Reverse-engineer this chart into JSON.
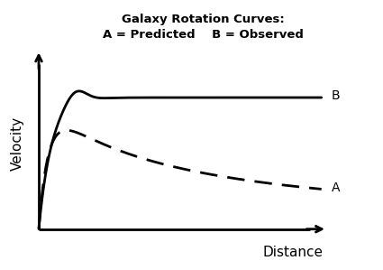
{
  "title_line1": "Galaxy Rotation Curves:",
  "title_line2": "A = Predicted    B = Observed",
  "xlabel": "Distance",
  "ylabel": "Velocity",
  "label_A": "A",
  "label_B": "B",
  "background_color": "#ffffff",
  "line_color": "#000000",
  "title_fontsize": 9.5,
  "axis_label_fontsize": 11,
  "curve_label_fontsize": 10
}
